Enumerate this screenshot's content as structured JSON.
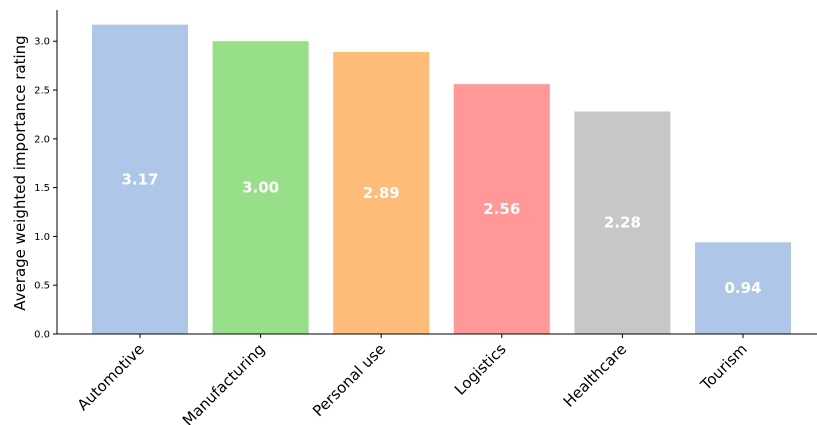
{
  "chart_data": {
    "type": "bar",
    "title": "",
    "xlabel": "",
    "ylabel": "Average weighted importance rating",
    "ylim": [
      0,
      3.32
    ],
    "yticks": [
      "0.0",
      "0.5",
      "1.0",
      "1.5",
      "2.0",
      "2.5",
      "3.0"
    ],
    "grid": false,
    "categories": [
      "Automotive",
      "Manufacturing",
      "Personal use",
      "Logistics",
      "Healthcare",
      "Tourism"
    ],
    "values": [
      3.17,
      3.0,
      2.89,
      2.56,
      2.28,
      0.94
    ],
    "value_labels": [
      "3.17",
      "3.00",
      "2.89",
      "2.56",
      "2.28",
      "0.94"
    ],
    "colors": [
      "#aec7e8",
      "#98df8a",
      "#ffbb78",
      "#ff9896",
      "#c7c7c7",
      "#aec7e8"
    ]
  }
}
